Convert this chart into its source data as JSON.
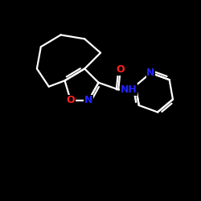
{
  "bg_color": "#000000",
  "bond_color": "#ffffff",
  "O_color": "#ff2222",
  "N_color": "#2222ff",
  "bond_lw": 1.6,
  "font_size": 9,
  "figsize": [
    2.5,
    2.5
  ],
  "dpi": 100,
  "xlim": [
    0.0,
    10.0
  ],
  "ylim": [
    0.5,
    9.5
  ]
}
